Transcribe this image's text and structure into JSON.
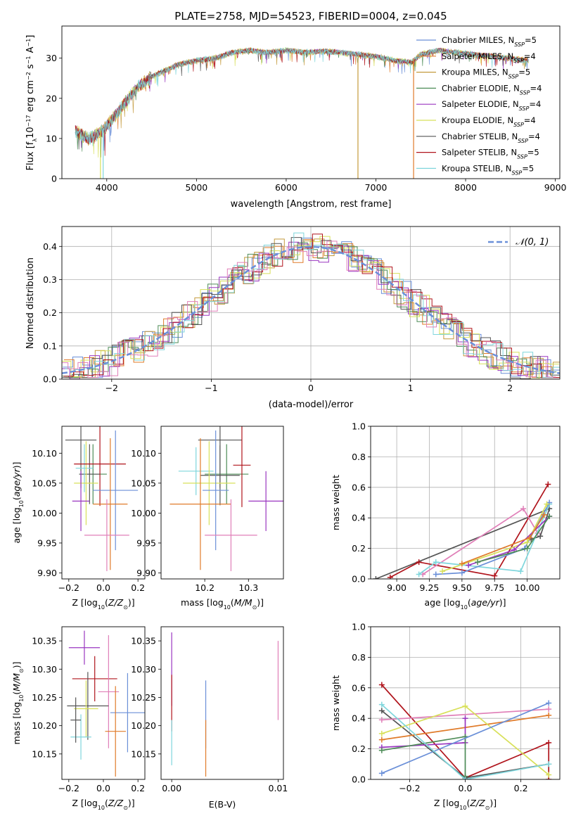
{
  "colors": {
    "chabrier_miles": "#6a8fd8",
    "salpeter_miles": "#e07b2a",
    "kroupa_miles": "#c49a3c",
    "chabrier_elodie": "#4d8c57",
    "salpeter_elodie": "#9a36c0",
    "kroupa_elodie": "#d8e05a",
    "chabrier_stelib": "#555555",
    "salpeter_stelib": "#b0141c",
    "kroupa_stelib": "#7fd6dc",
    "pink": "#e07fb8",
    "normal": "#6a8fd8",
    "grid": "#b0b0b0"
  },
  "chart_data": [
    {
      "id": "spectrum",
      "type": "line",
      "title": "PLATE=2758, MJD=54523, FIBERID=0004, z=0.045",
      "xlabel": "wavelength [Angstrom, rest frame]",
      "ylabel": "Flux [f_λ 10^-17 erg cm^-2 s^-1 A^-1]",
      "xlim": [
        3500,
        9050
      ],
      "ylim": [
        0,
        38
      ],
      "xticks": [
        4000,
        5000,
        6000,
        7000,
        8000,
        9000
      ],
      "yticks": [
        0,
        10,
        20,
        30
      ],
      "legend_position": "top-right",
      "continuum": [
        [
          3650,
          12
        ],
        [
          3800,
          10
        ],
        [
          3950,
          12
        ],
        [
          4100,
          16
        ],
        [
          4200,
          19
        ],
        [
          4350,
          23
        ],
        [
          4500,
          25.5
        ],
        [
          4650,
          27
        ],
        [
          4800,
          28.5
        ],
        [
          5000,
          29.5
        ],
        [
          5200,
          30
        ],
        [
          5400,
          31.5
        ],
        [
          5600,
          32
        ],
        [
          5800,
          31.5
        ],
        [
          6000,
          32
        ],
        [
          6200,
          31.5
        ],
        [
          6400,
          31.8
        ],
        [
          6600,
          31.5
        ],
        [
          6800,
          31
        ],
        [
          7000,
          30.5
        ],
        [
          7200,
          29.5
        ],
        [
          7400,
          29
        ],
        [
          7500,
          31
        ],
        [
          7700,
          32
        ],
        [
          7900,
          31.5
        ],
        [
          8100,
          31
        ],
        [
          8300,
          30.5
        ],
        [
          8500,
          30
        ],
        [
          8700,
          29.5
        ]
      ],
      "series": [
        {
          "name": "Chabrier MILES, N_SSP=5",
          "color_key": "chabrier_miles"
        },
        {
          "name": "Salpeter MILES, N_SSP=4",
          "color_key": "salpeter_miles"
        },
        {
          "name": "Kroupa MILES, N_SSP=5",
          "color_key": "kroupa_miles"
        },
        {
          "name": "Chabrier ELODIE, N_SSP=4",
          "color_key": "chabrier_elodie"
        },
        {
          "name": "Salpeter ELODIE, N_SSP=4",
          "color_key": "salpeter_elodie"
        },
        {
          "name": "Kroupa ELODIE, N_SSP=4",
          "color_key": "kroupa_elodie"
        },
        {
          "name": "Chabrier STELIB, N_SSP=4",
          "color_key": "chabrier_stelib"
        },
        {
          "name": "Salpeter STELIB, N_SSP=5",
          "color_key": "salpeter_stelib"
        },
        {
          "name": "Kroupa STELIB, N_SSP=5",
          "color_key": "kroupa_stelib"
        }
      ],
      "dropouts": [
        {
          "x": 6800,
          "y_top": 30,
          "color_key": "kroupa_miles"
        },
        {
          "x": 7420,
          "y_top": 30,
          "color_key": "salpeter_miles"
        },
        {
          "x": 3930,
          "y_top": 12,
          "color_key": "kroupa_elodie"
        },
        {
          "x": 3960,
          "y_top": 12,
          "color_key": "kroupa_stelib"
        }
      ]
    },
    {
      "id": "residuals",
      "type": "histogram",
      "xlabel": "(data-model)/error",
      "ylabel": "Normed distribution",
      "xlim": [
        -2.5,
        2.5
      ],
      "ylim": [
        0,
        0.46
      ],
      "xticks": [
        -2,
        -1,
        0,
        1,
        2
      ],
      "yticks": [
        0.0,
        0.1,
        0.2,
        0.3,
        0.4
      ],
      "legend": [
        {
          "name": "𝒩(0, 1)",
          "style": "dashed"
        }
      ],
      "bin_width": 0.1,
      "bin_start": -2.5
    },
    {
      "id": "age_vs_Z",
      "type": "errorbar",
      "xlabel": "Z [log10(Z/Z_⊙)]",
      "ylabel": "age [log10(age/yr)]",
      "xlim": [
        -0.24,
        0.24
      ],
      "ylim": [
        9.89,
        10.145
      ],
      "xticks": [
        -0.2,
        0.0,
        0.2
      ],
      "yticks": [
        9.9,
        9.95,
        10.0,
        10.05,
        10.1
      ],
      "points": [
        {
          "x": -0.13,
          "y": 10.122,
          "xerr": 0.09,
          "yerr": 0.08,
          "color_key": "chabrier_stelib"
        },
        {
          "x": -0.06,
          "y": 10.065,
          "xerr": 0.08,
          "yerr": 0.05,
          "color_key": "chabrier_elodie"
        },
        {
          "x": -0.08,
          "y": 10.065,
          "xerr": 0.06,
          "yerr": 0.05,
          "color_key": "chabrier_stelib"
        },
        {
          "x": -0.11,
          "y": 10.075,
          "xerr": 0.05,
          "yerr": 0.04,
          "color_key": "kroupa_stelib"
        },
        {
          "x": -0.1,
          "y": 10.05,
          "xerr": 0.07,
          "yerr": 0.07,
          "color_key": "kroupa_elodie"
        },
        {
          "x": -0.13,
          "y": 10.02,
          "xerr": 0.05,
          "yerr": 0.05,
          "color_key": "salpeter_elodie"
        },
        {
          "x": -0.02,
          "y": 10.082,
          "xerr": 0.15,
          "yerr": 0.07,
          "color_key": "salpeter_stelib"
        },
        {
          "x": 0.07,
          "y": 10.038,
          "xerr": 0.13,
          "yerr": 0.1,
          "color_key": "chabrier_miles"
        },
        {
          "x": 0.04,
          "y": 10.015,
          "xerr": 0.1,
          "yerr": 0.11,
          "color_key": "salpeter_miles"
        },
        {
          "x": 0.02,
          "y": 9.963,
          "xerr": 0.13,
          "yerr": 0.06,
          "color_key": "pink"
        }
      ]
    },
    {
      "id": "age_vs_mass",
      "type": "errorbar",
      "xlabel": "mass [log10(M/M_⊙)]",
      "xlim": [
        10.1,
        10.38
      ],
      "ylim": [
        9.89,
        10.145
      ],
      "xticks": [
        10.2,
        10.3
      ],
      "yticks": [
        9.9,
        9.95,
        10.0,
        10.05,
        10.1
      ],
      "points": [
        {
          "x": 10.235,
          "y": 10.122,
          "xerr": 0.05,
          "yerr": 0.08,
          "color_key": "chabrier_stelib"
        },
        {
          "x": 10.25,
          "y": 10.065,
          "xerr": 0.05,
          "yerr": 0.05,
          "color_key": "chabrier_elodie"
        },
        {
          "x": 10.235,
          "y": 10.063,
          "xerr": 0.045,
          "yerr": 0.05,
          "color_key": "chabrier_stelib"
        },
        {
          "x": 10.18,
          "y": 10.07,
          "xerr": 0.04,
          "yerr": 0.04,
          "color_key": "kroupa_stelib"
        },
        {
          "x": 10.21,
          "y": 10.05,
          "xerr": 0.06,
          "yerr": 0.07,
          "color_key": "kroupa_elodie"
        },
        {
          "x": 10.34,
          "y": 10.02,
          "xerr": 0.04,
          "yerr": 0.05,
          "color_key": "salpeter_elodie"
        },
        {
          "x": 10.285,
          "y": 10.08,
          "xerr": 0.02,
          "yerr": 0.07,
          "color_key": "salpeter_stelib"
        },
        {
          "x": 10.225,
          "y": 10.038,
          "xerr": 0.03,
          "yerr": 0.1,
          "color_key": "chabrier_miles"
        },
        {
          "x": 10.19,
          "y": 10.015,
          "xerr": 0.07,
          "yerr": 0.11,
          "color_key": "salpeter_miles"
        },
        {
          "x": 10.26,
          "y": 9.963,
          "xerr": 0.06,
          "yerr": 0.06,
          "color_key": "pink"
        }
      ]
    },
    {
      "id": "weight_vs_age",
      "type": "line",
      "xlabel": "age [log10(age/yr)]",
      "ylabel": "mass weight",
      "xlim": [
        8.8,
        10.25
      ],
      "ylim": [
        0,
        1.0
      ],
      "xticks": [
        9.0,
        9.25,
        9.5,
        9.75,
        10.0
      ],
      "xtick_labels": [
        "9.00",
        "9.25",
        "9.50",
        "9.75",
        "10.00"
      ],
      "yticks": [
        0.0,
        0.2,
        0.4,
        0.6,
        0.8,
        1.0
      ],
      "series": [
        {
          "color_key": "chabrier_stelib",
          "points": [
            [
              8.84,
              0.0
            ],
            [
              10.17,
              0.46
            ],
            [
              10.1,
              0.28
            ],
            [
              10.03,
              0.26
            ]
          ]
        },
        {
          "color_key": "salpeter_stelib",
          "points": [
            [
              8.95,
              0.01
            ],
            [
              9.17,
              0.11
            ],
            [
              9.75,
              0.02
            ],
            [
              10.16,
              0.62
            ]
          ]
        },
        {
          "color_key": "pink",
          "points": [
            [
              9.2,
              0.03
            ],
            [
              9.97,
              0.46
            ],
            [
              10.08,
              0.3
            ]
          ]
        },
        {
          "color_key": "kroupa_stelib",
          "points": [
            [
              9.17,
              0.03
            ],
            [
              9.3,
              0.11
            ],
            [
              9.95,
              0.05
            ],
            [
              10.17,
              0.49
            ]
          ]
        },
        {
          "color_key": "chabrier_miles",
          "points": [
            [
              9.3,
              0.03
            ],
            [
              9.5,
              0.04
            ],
            [
              9.98,
              0.2
            ],
            [
              10.17,
              0.5
            ]
          ]
        },
        {
          "color_key": "kroupa_elodie",
          "points": [
            [
              9.35,
              0.05
            ],
            [
              10.0,
              0.24
            ],
            [
              10.15,
              0.49
            ]
          ]
        },
        {
          "color_key": "salpeter_elodie",
          "points": [
            [
              9.55,
              0.09
            ],
            [
              9.9,
              0.19
            ],
            [
              10.17,
              0.41
            ]
          ]
        },
        {
          "color_key": "salpeter_miles",
          "points": [
            [
              9.5,
              0.1
            ],
            [
              10.02,
              0.27
            ],
            [
              10.13,
              0.42
            ]
          ]
        },
        {
          "color_key": "chabrier_elodie",
          "points": [
            [
              9.62,
              0.11
            ],
            [
              10.0,
              0.2
            ],
            [
              10.17,
              0.41
            ]
          ]
        }
      ]
    },
    {
      "id": "mass_vs_Z",
      "type": "errorbar",
      "xlabel": "Z [log10(Z/Z_⊙)]",
      "ylabel": "mass [log10(M/M_⊙)]",
      "xlim": [
        -0.24,
        0.24
      ],
      "ylim": [
        10.105,
        10.375
      ],
      "xticks": [
        -0.2,
        0.0,
        0.2
      ],
      "yticks": [
        10.15,
        10.2,
        10.25,
        10.3,
        10.35
      ],
      "points": [
        {
          "x": -0.11,
          "y": 10.338,
          "xerr": 0.09,
          "yerr": 0.03,
          "color_key": "salpeter_elodie"
        },
        {
          "x": -0.05,
          "y": 10.283,
          "xerr": 0.13,
          "yerr": 0.04,
          "color_key": "salpeter_stelib"
        },
        {
          "x": 0.03,
          "y": 10.26,
          "xerr": 0.06,
          "yerr": 0.1,
          "color_key": "pink"
        },
        {
          "x": -0.09,
          "y": 10.235,
          "xerr": 0.12,
          "yerr": 0.06,
          "color_key": "chabrier_stelib"
        },
        {
          "x": -0.1,
          "y": 10.23,
          "xerr": 0.07,
          "yerr": 0.05,
          "color_key": "kroupa_elodie"
        },
        {
          "x": 0.14,
          "y": 10.223,
          "xerr": 0.1,
          "yerr": 0.07,
          "color_key": "chabrier_miles"
        },
        {
          "x": 0.07,
          "y": 10.19,
          "xerr": 0.06,
          "yerr": 0.08,
          "color_key": "salpeter_miles"
        },
        {
          "x": -0.13,
          "y": 10.18,
          "xerr": 0.06,
          "yerr": 0.04,
          "color_key": "kroupa_stelib"
        },
        {
          "x": -0.16,
          "y": 10.21,
          "xerr": 0.03,
          "yerr": 0.04,
          "color_key": "chabrier_stelib"
        }
      ]
    },
    {
      "id": "mass_vs_ebv",
      "type": "errorbar",
      "xlabel": "E(B-V)",
      "xlim": [
        -0.001,
        0.0105
      ],
      "ylim": [
        10.105,
        10.375
      ],
      "xticks": [
        0.0,
        0.01
      ],
      "xtick_labels": [
        "0.00",
        "0.01"
      ],
      "yticks": [
        10.15,
        10.2,
        10.25,
        10.3,
        10.35
      ],
      "points": [
        {
          "x": 0.0,
          "y": 10.3,
          "xerr": 0.0,
          "yerr": 0.065,
          "color_key": "salpeter_elodie"
        },
        {
          "x": 0.0,
          "y": 10.24,
          "xerr": 0.0,
          "yerr": 0.05,
          "color_key": "salpeter_stelib"
        },
        {
          "x": 0.0,
          "y": 10.17,
          "xerr": 0.0,
          "yerr": 0.04,
          "color_key": "kroupa_stelib"
        },
        {
          "x": 0.0032,
          "y": 10.22,
          "xerr": 0.0,
          "yerr": 0.06,
          "color_key": "chabrier_miles"
        },
        {
          "x": 0.0032,
          "y": 10.16,
          "xerr": 0.0,
          "yerr": 0.05,
          "color_key": "salpeter_miles"
        },
        {
          "x": 0.01,
          "y": 10.28,
          "xerr": 0.0,
          "yerr": 0.07,
          "color_key": "pink"
        }
      ]
    },
    {
      "id": "weight_vs_Z",
      "type": "line",
      "xlabel": "Z [log10(Z/Z_⊙)]",
      "ylabel": "mass weight",
      "xlim": [
        -0.34,
        0.34
      ],
      "ylim": [
        0,
        1.0
      ],
      "xticks": [
        -0.2,
        0.0,
        0.2
      ],
      "yticks": [
        0.0,
        0.2,
        0.4,
        0.6,
        0.8,
        1.0
      ],
      "series": [
        {
          "color_key": "salpeter_stelib",
          "points": [
            [
              -0.3,
              0.62
            ],
            [
              0.0,
              0.01
            ],
            [
              0.3,
              0.24
            ],
            [
              0.3,
              0.0
            ]
          ]
        },
        {
          "color_key": "chabrier_stelib",
          "points": [
            [
              -0.3,
              0.45
            ],
            [
              0.0,
              0.01
            ],
            [
              0.3,
              0.1
            ]
          ]
        },
        {
          "color_key": "pink",
          "points": [
            [
              -0.3,
              0.39
            ],
            [
              0.3,
              0.46
            ]
          ]
        },
        {
          "color_key": "salpeter_miles",
          "points": [
            [
              -0.3,
              0.26
            ],
            [
              0.3,
              0.42
            ]
          ]
        },
        {
          "color_key": "kroupa_elodie",
          "points": [
            [
              -0.3,
              0.3
            ],
            [
              0.0,
              0.48
            ],
            [
              0.3,
              0.03
            ]
          ]
        },
        {
          "color_key": "salpeter_elodie",
          "points": [
            [
              -0.3,
              0.21
            ],
            [
              0.0,
              0.24
            ],
            [
              0.0,
              0.4
            ]
          ]
        },
        {
          "color_key": "chabrier_elodie",
          "points": [
            [
              -0.3,
              0.19
            ],
            [
              0.0,
              0.28
            ],
            [
              0.0,
              0.02
            ]
          ]
        },
        {
          "color_key": "chabrier_miles",
          "points": [
            [
              -0.3,
              0.04
            ],
            [
              0.3,
              0.5
            ]
          ]
        },
        {
          "color_key": "kroupa_stelib",
          "points": [
            [
              -0.3,
              0.49
            ],
            [
              0.0,
              0.0
            ],
            [
              0.3,
              0.1
            ]
          ]
        }
      ]
    }
  ]
}
